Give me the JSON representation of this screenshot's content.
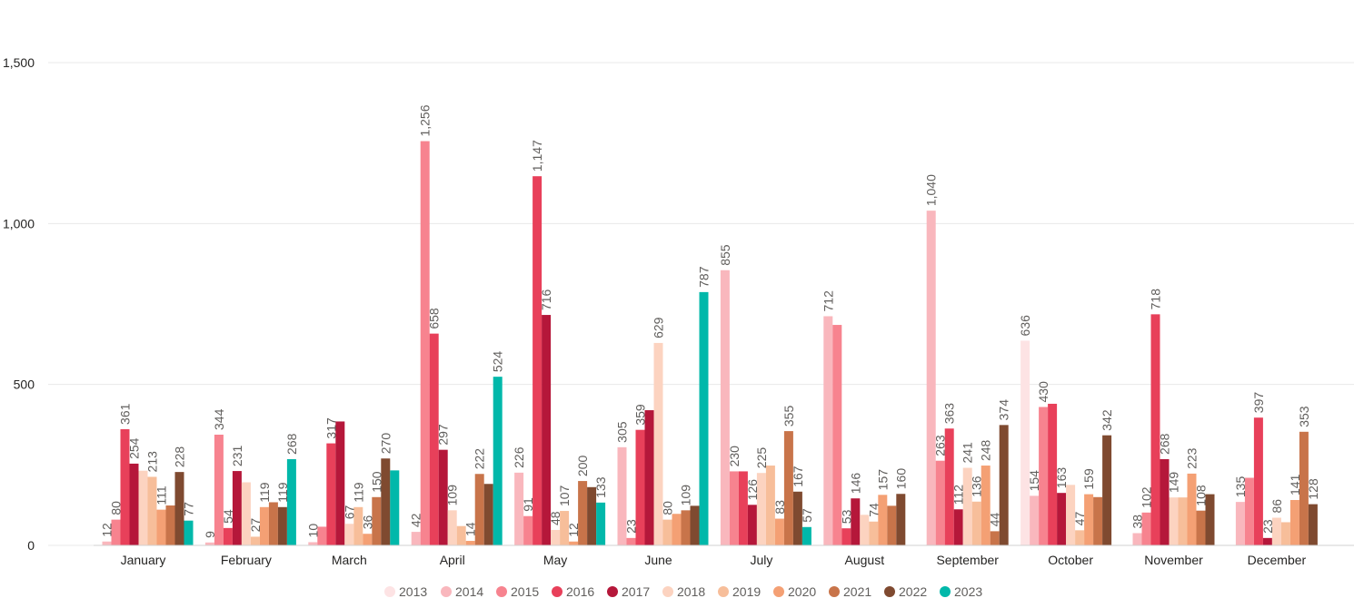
{
  "chart_data": {
    "type": "bar",
    "categories": [
      "January",
      "February",
      "March",
      "April",
      "May",
      "June",
      "July",
      "August",
      "September",
      "October",
      "November",
      "December"
    ],
    "ylim": [
      0,
      1600
    ],
    "yticks": [
      0,
      500,
      1000,
      1500
    ],
    "ytick_labels": [
      "0",
      "500",
      "1,000",
      "1,500"
    ],
    "grid": true,
    "legend_position": "bottom",
    "series": [
      {
        "name": "2013",
        "color": "#fde3e4",
        "values": [
          null,
          null,
          null,
          null,
          null,
          null,
          null,
          null,
          null,
          636,
          null,
          null
        ],
        "labels": [
          "",
          "",
          "",
          "",
          "",
          "",
          "",
          "",
          "",
          "636",
          "",
          ""
        ]
      },
      {
        "name": "2014",
        "color": "#f9b7bd",
        "values": [
          12,
          9,
          10,
          42,
          226,
          305,
          855,
          712,
          1040,
          154,
          38,
          135
        ],
        "labels": [
          "12",
          "9",
          "10",
          "42",
          "226",
          "305",
          "855",
          "712",
          "1,040",
          "154",
          "38",
          "135"
        ]
      },
      {
        "name": "2015",
        "color": "#f7838f",
        "values": [
          80,
          344,
          58,
          1256,
          91,
          23,
          230,
          685,
          263,
          430,
          102,
          210
        ],
        "labels": [
          "80",
          "344",
          "",
          "1,256",
          "91",
          "23",
          "230",
          "",
          "263",
          "430",
          "102",
          ""
        ]
      },
      {
        "name": "2016",
        "color": "#e8405a",
        "values": [
          361,
          54,
          317,
          658,
          1147,
          359,
          230,
          53,
          363,
          440,
          718,
          397
        ],
        "labels": [
          "361",
          "54",
          "317",
          "658",
          "1,147",
          "359",
          "",
          "53",
          "363",
          "",
          "718",
          "397"
        ]
      },
      {
        "name": "2017",
        "color": "#b5173a",
        "values": [
          254,
          231,
          385,
          297,
          716,
          420,
          126,
          146,
          112,
          163,
          268,
          23
        ],
        "labels": [
          "254",
          "231",
          "",
          "297",
          "716",
          "",
          "126",
          "146",
          "112",
          "163",
          "268",
          "23"
        ]
      },
      {
        "name": "2018",
        "color": "#fcd3c0",
        "values": [
          232,
          196,
          67,
          109,
          48,
          629,
          225,
          95,
          241,
          188,
          149,
          86
        ],
        "labels": [
          "",
          "",
          "67",
          "109",
          "48",
          "629",
          "225",
          "",
          "241",
          "",
          "149",
          "86"
        ]
      },
      {
        "name": "2019",
        "color": "#f7be9a",
        "values": [
          213,
          27,
          119,
          60,
          107,
          80,
          248,
          74,
          136,
          47,
          149,
          72
        ],
        "labels": [
          "213",
          "27",
          "119",
          "",
          "107",
          "80",
          "",
          "74",
          "136",
          "47",
          "",
          ""
        ]
      },
      {
        "name": "2020",
        "color": "#f4a074",
        "values": [
          111,
          119,
          36,
          14,
          12,
          98,
          83,
          157,
          248,
          159,
          223,
          141
        ],
        "labels": [
          "111",
          "119",
          "36",
          "14",
          "12",
          "",
          "83",
          "157",
          "248",
          "159",
          "223",
          "141"
        ]
      },
      {
        "name": "2021",
        "color": "#c8744a",
        "values": [
          124,
          134,
          150,
          222,
          200,
          109,
          355,
          123,
          44,
          150,
          108,
          353
        ],
        "labels": [
          "",
          "",
          "150",
          "222",
          "200",
          "109",
          "355",
          "",
          "44",
          "",
          "108",
          "353"
        ]
      },
      {
        "name": "2022",
        "color": "#7f4a30",
        "values": [
          228,
          119,
          270,
          191,
          181,
          123,
          167,
          160,
          374,
          342,
          159,
          128
        ],
        "labels": [
          "228",
          "119",
          "270",
          "",
          "",
          "",
          "167",
          "160",
          "374",
          "342",
          "",
          "128"
        ]
      },
      {
        "name": "2023",
        "color": "#01b8aa",
        "values": [
          77,
          268,
          233,
          524,
          133,
          787,
          57,
          null,
          null,
          null,
          null,
          null
        ],
        "labels": [
          "77",
          "268",
          "",
          "524",
          "133",
          "787",
          "57",
          "",
          "",
          "",
          "",
          ""
        ]
      }
    ]
  }
}
